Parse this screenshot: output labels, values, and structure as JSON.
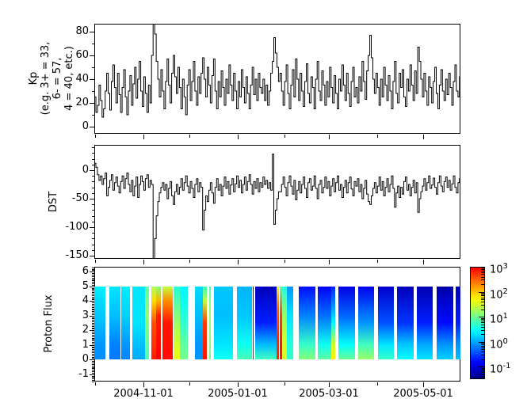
{
  "figure": {
    "bg": "#ffffff",
    "line_color": "#000000"
  },
  "x_axis": {
    "major_ticks": [
      {
        "label": "2004-11-01",
        "day": 31.7
      },
      {
        "label": "2005-01-01",
        "day": 92.7
      },
      {
        "label": "2005-03-01",
        "day": 151.7
      },
      {
        "label": "2005-05-01",
        "day": 212.7
      }
    ],
    "minor_days": [
      0.7,
      61.7,
      122.7,
      182.7
    ],
    "span_days": 236.6
  },
  "chart_data": [
    {
      "type": "line",
      "name": "kp_index",
      "ylabel": "Kp\n(e.g. 3+ = 33,\n6- = 57,\n4 = 40, etc.)",
      "x_unit": "days since 2004-09-30",
      "xlim": [
        0,
        236.6
      ],
      "ylim": [
        -6,
        86.7
      ],
      "yticks": [
        0,
        20,
        40,
        60,
        80
      ],
      "yminor": [
        10,
        30,
        50,
        70
      ],
      "grid": false,
      "values_daily": [
        25,
        12,
        18,
        35,
        22,
        8,
        15,
        30,
        45,
        28,
        14,
        38,
        52,
        33,
        20,
        45,
        27,
        12,
        33,
        48,
        25,
        10,
        30,
        43,
        18,
        36,
        50,
        24,
        40,
        55,
        30,
        17,
        42,
        28,
        12,
        35,
        20,
        60,
        87,
        78,
        55,
        40,
        25,
        48,
        30,
        15,
        38,
        57,
        35,
        20,
        45,
        60,
        42,
        28,
        50,
        33,
        15,
        40,
        25,
        10,
        35,
        48,
        22,
        38,
        55,
        30,
        18,
        42,
        28,
        45,
        58,
        40,
        25,
        50,
        35,
        20,
        43,
        57,
        30,
        15,
        38,
        25,
        47,
        33,
        18,
        40,
        28,
        52,
        35,
        22,
        45,
        30,
        15,
        38,
        25,
        48,
        33,
        20,
        42,
        28,
        15,
        35,
        50,
        27,
        40,
        22,
        45,
        33,
        28,
        40,
        22,
        35,
        18,
        30,
        45,
        55,
        75,
        62,
        50,
        38,
        45,
        30,
        18,
        38,
        52,
        28,
        15,
        35,
        48,
        25,
        57,
        40,
        22,
        45,
        30,
        17,
        38,
        53,
        28,
        20,
        42,
        33,
        15,
        40,
        55,
        30,
        22,
        47,
        35,
        18,
        38,
        25,
        50,
        33,
        20,
        43,
        28,
        15,
        40,
        30,
        52,
        35,
        22,
        45,
        28,
        17,
        38,
        50,
        25,
        33,
        20,
        42,
        30,
        55,
        38,
        23,
        47,
        60,
        77,
        58,
        40,
        28,
        45,
        33,
        18,
        40,
        25,
        50,
        35,
        22,
        43,
        30,
        15,
        38,
        55,
        28,
        20,
        45,
        33,
        48,
        25,
        17,
        40,
        30,
        52,
        35,
        22,
        47,
        28,
        67,
        55,
        40,
        25,
        45,
        30,
        18,
        42,
        33,
        20,
        38,
        50,
        28,
        15,
        35,
        48,
        30,
        22,
        40,
        27,
        45,
        33,
        18,
        38,
        52,
        30,
        25,
        42
      ]
    },
    {
      "type": "line",
      "name": "dst_index",
      "ylabel": "DST",
      "x_unit": "days since 2004-09-30",
      "xlim": [
        0,
        236.6
      ],
      "ylim": [
        -155.6,
        44.4
      ],
      "yticks": [
        0,
        -50,
        -100,
        -150
      ],
      "yminor_step": 10,
      "grid": false,
      "values_daily": [
        12,
        5,
        -8,
        -18,
        -10,
        -25,
        -15,
        -5,
        -45,
        -30,
        -18,
        -8,
        -35,
        -22,
        -12,
        -28,
        -40,
        -20,
        -10,
        -32,
        -15,
        -5,
        -25,
        -38,
        -18,
        -45,
        -28,
        -12,
        -48,
        -25,
        -10,
        -20,
        -35,
        -15,
        -8,
        -30,
        -18,
        -25,
        -165,
        -120,
        -80,
        -55,
        -40,
        -30,
        -22,
        -35,
        -25,
        -50,
        -32,
        -20,
        -45,
        -60,
        -38,
        -25,
        -42,
        -30,
        -15,
        -35,
        -22,
        -10,
        -28,
        -40,
        -20,
        -32,
        -48,
        -25,
        -15,
        -38,
        -22,
        -30,
        -105,
        -70,
        -45,
        -55,
        -35,
        -22,
        -40,
        -58,
        -30,
        -15,
        -35,
        -25,
        -45,
        -28,
        -12,
        -32,
        -20,
        -42,
        -26,
        -15,
        -38,
        -24,
        -10,
        -30,
        -18,
        -40,
        -25,
        -12,
        -35,
        -20,
        -8,
        -25,
        -42,
        -20,
        -32,
        -15,
        -38,
        -22,
        -30,
        -12,
        -25,
        -18,
        -32,
        -22,
        -35,
        28,
        -95,
        -70,
        -50,
        -38,
        -38,
        -25,
        -12,
        -30,
        -45,
        -22,
        -10,
        -28,
        -42,
        -18,
        -52,
        -35,
        -20,
        -40,
        -25,
        -12,
        -32,
        -48,
        -22,
        -15,
        -35,
        -28,
        -10,
        -32,
        -50,
        -25,
        -18,
        -40,
        -30,
        -12,
        -32,
        -20,
        -45,
        -28,
        -15,
        -38,
        -22,
        -10,
        -35,
        -25,
        -48,
        -30,
        -18,
        -40,
        -22,
        -12,
        -33,
        -45,
        -20,
        -28,
        -15,
        -38,
        -25,
        -50,
        -32,
        -18,
        -42,
        -55,
        -60,
        -45,
        -32,
        -22,
        -40,
        -28,
        -12,
        -35,
        -20,
        -45,
        -30,
        -15,
        -38,
        -25,
        -10,
        -32,
        -65,
        -40,
        -28,
        -48,
        -30,
        -42,
        -20,
        -12,
        -35,
        -25,
        -45,
        -30,
        -18,
        -40,
        -22,
        -74,
        -50,
        -38,
        -28,
        -15,
        -35,
        -22,
        -10,
        -32,
        -26,
        -14,
        -30,
        -42,
        -22,
        -10,
        -28,
        -38,
        -20,
        -12,
        -30,
        -18,
        -35,
        -24,
        -10,
        -30,
        -40,
        -22,
        -15
      ]
    },
    {
      "type": "heatmap",
      "name": "proton_flux",
      "ylabel": "Proton Flux",
      "x_unit": "days since 2004-09-30",
      "xlim": [
        0,
        236.6
      ],
      "ylim": [
        -1.5,
        6.34
      ],
      "yticks": [
        -1,
        0,
        1,
        2,
        3,
        4,
        5,
        6
      ],
      "yminor_step": 0.1,
      "colormap": "jet",
      "log_flux_range": [
        -1.5,
        3
      ],
      "colorbar_ticks": [
        {
          "base": "10",
          "exp": "3"
        },
        {
          "base": "10",
          "exp": "2"
        },
        {
          "base": "10",
          "exp": "1"
        },
        {
          "base": "10",
          "exp": "0"
        },
        {
          "base": "10",
          "exp": "-1"
        }
      ],
      "segments": [
        {
          "d0": 0.0,
          "d1": 7.2,
          "stops": [
            [
              5,
              0.35
            ],
            [
              3,
              0.15
            ],
            [
              1,
              -0.1
            ],
            [
              0,
              -0.15
            ]
          ]
        },
        {
          "d0": 9.7,
          "d1": 16.8,
          "stops": [
            [
              5,
              0.3
            ],
            [
              3,
              0.1
            ],
            [
              1,
              -0.2
            ],
            [
              0,
              -0.25
            ]
          ]
        },
        {
          "d0": 17.2,
          "d1": 23.2,
          "stops": [
            [
              5,
              0.35
            ],
            [
              3,
              0.2
            ],
            [
              1,
              -0.1
            ],
            [
              0,
              -0.2
            ]
          ]
        },
        {
          "d0": 24.8,
          "d1": 32.8,
          "stops": [
            [
              5,
              0.3
            ],
            [
              2.5,
              0.3
            ],
            [
              1,
              0.1
            ],
            [
              0,
              0.0
            ]
          ]
        },
        {
          "d0": 32.8,
          "d1": 35.4,
          "stops": [
            [
              5,
              0.9
            ],
            [
              3,
              1.2
            ],
            [
              1.5,
              1.0
            ],
            [
              0,
              0.8
            ]
          ]
        },
        {
          "d0": 36.9,
          "d1": 40.0,
          "stops": [
            [
              5,
              1.3
            ],
            [
              4,
              1.9
            ],
            [
              2.5,
              2.6
            ],
            [
              0,
              2.85
            ]
          ]
        },
        {
          "d0": 40.0,
          "d1": 43.0,
          "stops": [
            [
              5,
              1.1
            ],
            [
              4,
              2.1
            ],
            [
              3,
              2.85
            ],
            [
              0,
              3.0
            ]
          ]
        },
        {
          "d0": 43.8,
          "d1": 50.6,
          "stops": [
            [
              5,
              1.4
            ],
            [
              4,
              2.3
            ],
            [
              2.5,
              2.9
            ],
            [
              0,
              2.95
            ]
          ]
        },
        {
          "d0": 51.2,
          "d1": 55.5,
          "stops": [
            [
              5,
              0.6
            ],
            [
              3,
              1.1
            ],
            [
              1,
              1.5
            ],
            [
              0,
              1.6
            ]
          ]
        },
        {
          "d0": 55.5,
          "d1": 60.4,
          "stops": [
            [
              5,
              0.4
            ],
            [
              3,
              0.6
            ],
            [
              1,
              0.9
            ],
            [
              0,
              1.0
            ]
          ]
        },
        {
          "d0": 65.0,
          "d1": 70.1,
          "stops": [
            [
              5,
              0.25
            ],
            [
              3,
              0.1
            ],
            [
              1,
              -0.1
            ],
            [
              0,
              -0.1
            ]
          ]
        },
        {
          "d0": 70.1,
          "d1": 72.7,
          "stops": [
            [
              5,
              0.7
            ],
            [
              4,
              1.4
            ],
            [
              2.5,
              2.7
            ],
            [
              0,
              2.9
            ]
          ]
        },
        {
          "d0": 74.3,
          "d1": 75.4,
          "stops": [
            [
              5,
              0.8
            ],
            [
              3,
              1.2
            ],
            [
              1,
              1.1
            ],
            [
              0,
              1.0
            ]
          ]
        },
        {
          "d0": 77.3,
          "d1": 89.7,
          "stops": [
            [
              5,
              0.15
            ],
            [
              3,
              0.1
            ],
            [
              1,
              0.3
            ],
            [
              0,
              0.5
            ]
          ]
        },
        {
          "d0": 92.1,
          "d1": 101.9,
          "stops": [
            [
              5,
              0.05
            ],
            [
              3,
              0.15
            ],
            [
              1,
              0.5
            ],
            [
              0,
              0.8
            ]
          ]
        },
        {
          "d0": 102.3,
          "d1": 102.9,
          "stops": [
            [
              5,
              -1.0
            ],
            [
              0,
              -0.5
            ]
          ]
        },
        {
          "d0": 104.0,
          "d1": 117.8,
          "stops": [
            [
              5,
              -1.2
            ],
            [
              2.5,
              -0.7
            ],
            [
              1,
              0.1
            ],
            [
              0,
              0.75
            ]
          ]
        },
        {
          "d0": 117.8,
          "d1": 119.3,
          "stops": [
            [
              5,
              1.6
            ],
            [
              3.5,
              2.5
            ],
            [
              1.5,
              2.8
            ],
            [
              0,
              2.8
            ]
          ]
        },
        {
          "d0": 119.9,
          "d1": 121.4,
          "stops": [
            [
              5,
              0.9
            ],
            [
              3,
              2.7
            ],
            [
              1,
              2.9
            ],
            [
              0,
              2.9
            ]
          ]
        },
        {
          "d0": 121.4,
          "d1": 124.6,
          "stops": [
            [
              5,
              0.6
            ],
            [
              3,
              1.2
            ],
            [
              1,
              1.5
            ],
            [
              0,
              1.5
            ]
          ]
        },
        {
          "d0": 124.6,
          "d1": 128.8,
          "stops": [
            [
              5,
              -0.1
            ],
            [
              3,
              0.3
            ],
            [
              1,
              0.6
            ],
            [
              0,
              0.7
            ]
          ]
        },
        {
          "d0": 132.1,
          "d1": 142.9,
          "stops": [
            [
              5,
              -0.8
            ],
            [
              3,
              -0.2
            ],
            [
              1,
              0.7
            ],
            [
              0,
              1.1
            ]
          ]
        },
        {
          "d0": 144.4,
          "d1": 153.3,
          "stops": [
            [
              5,
              -0.9
            ],
            [
              3,
              -0.3
            ],
            [
              1,
              0.5
            ],
            [
              0,
              0.9
            ]
          ]
        },
        {
          "d0": 153.3,
          "d1": 155.6,
          "stops": [
            [
              5,
              -0.7
            ],
            [
              2.5,
              0.4
            ],
            [
              1,
              1.5
            ],
            [
              0,
              1.8
            ]
          ]
        },
        {
          "d0": 157.7,
          "d1": 168.4,
          "stops": [
            [
              5,
              -1.0
            ],
            [
              3,
              -0.35
            ],
            [
              1,
              0.45
            ],
            [
              0,
              0.95
            ]
          ]
        },
        {
          "d0": 170.5,
          "d1": 180.9,
          "stops": [
            [
              5,
              -0.95
            ],
            [
              2.5,
              -0.1
            ],
            [
              1,
              0.75
            ],
            [
              0,
              1.2
            ]
          ]
        },
        {
          "d0": 183.3,
          "d1": 193.4,
          "stops": [
            [
              5,
              -1.1
            ],
            [
              2.5,
              -0.45
            ],
            [
              1,
              0.3
            ],
            [
              0,
              0.7
            ]
          ]
        },
        {
          "d0": 195.5,
          "d1": 206.3,
          "stops": [
            [
              5,
              -1.2
            ],
            [
              2.5,
              -0.6
            ],
            [
              1,
              0.15
            ],
            [
              0,
              0.45
            ]
          ]
        },
        {
          "d0": 208.4,
          "d1": 218.9,
          "stops": [
            [
              5,
              -1.25
            ],
            [
              2.5,
              -0.7
            ],
            [
              1,
              0.0
            ],
            [
              0,
              0.3
            ]
          ]
        },
        {
          "d0": 221.0,
          "d1": 231.9,
          "stops": [
            [
              5,
              -1.3
            ],
            [
              2.5,
              -0.8
            ],
            [
              1,
              -0.1
            ],
            [
              0,
              0.2
            ]
          ]
        },
        {
          "d0": 233.4,
          "d1": 236.6,
          "stops": [
            [
              5,
              -1.2
            ],
            [
              2.5,
              -0.7
            ],
            [
              1,
              -0.1
            ],
            [
              0,
              0.1
            ]
          ]
        }
      ]
    }
  ]
}
